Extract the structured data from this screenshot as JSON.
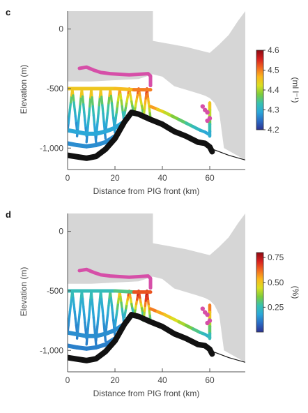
{
  "chart_data": [
    {
      "type": "scatter",
      "panel_label": "c",
      "xlabel": "Distance from PIG front (km)",
      "ylabel": "Elevation (m)",
      "xlim": [
        0,
        75
      ],
      "ylim": [
        -1180,
        150
      ],
      "x_ticks": [
        0,
        20,
        40,
        60
      ],
      "x_tick_labels": [
        "0",
        "20",
        "40",
        "60"
      ],
      "y_ticks": [
        0,
        -500,
        -1000
      ],
      "y_tick_labels": [
        "0",
        "-500",
        "-1,000"
      ],
      "colorbar": {
        "label": "(ml l⁻¹)",
        "min": 4.2,
        "max": 4.6,
        "ticks": [
          4.2,
          4.3,
          4.4,
          4.5,
          4.6
        ],
        "tick_labels": [
          "4.2",
          "4.3",
          "4.4",
          "4.5",
          "4.6"
        ]
      },
      "ice_shelf_upper": [
        [
          0,
          150
        ],
        [
          36,
          150
        ],
        [
          36,
          -100
        ],
        [
          50,
          -150
        ],
        [
          60,
          -200
        ],
        [
          64,
          -130
        ],
        [
          68,
          -50
        ],
        [
          72,
          70
        ],
        [
          75,
          150
        ]
      ],
      "ice_shelf_lower": [
        [
          0,
          -440
        ],
        [
          10,
          -440
        ],
        [
          20,
          -430
        ],
        [
          30,
          -420
        ],
        [
          36,
          -380
        ],
        [
          40,
          -400
        ],
        [
          45,
          -480
        ],
        [
          50,
          -510
        ],
        [
          55,
          -540
        ],
        [
          58,
          -560
        ],
        [
          60,
          -580
        ],
        [
          62,
          -620
        ],
        [
          64,
          -700
        ],
        [
          66,
          -1000
        ],
        [
          75,
          -1100
        ]
      ],
      "bathymetry": [
        [
          0,
          -1060
        ],
        [
          3,
          -1070
        ],
        [
          8,
          -1085
        ],
        [
          12,
          -1070
        ],
        [
          16,
          -1010
        ],
        [
          20,
          -920
        ],
        [
          24,
          -780
        ],
        [
          27,
          -700
        ],
        [
          30,
          -715
        ],
        [
          35,
          -760
        ],
        [
          40,
          -800
        ],
        [
          45,
          -860
        ],
        [
          50,
          -900
        ],
        [
          55,
          -950
        ],
        [
          58,
          -960
        ],
        [
          60,
          -990
        ],
        [
          61,
          -1030
        ]
      ],
      "bathymetry_extension": [
        [
          60,
          -1000
        ],
        [
          68,
          -1060
        ],
        [
          75,
          -1100
        ]
      ],
      "profiles": [
        {
          "x_start": 0,
          "x_end": 4,
          "top": -500,
          "bottom": -850,
          "values": [
            4.27,
            4.29,
            4.31,
            4.33,
            4.36,
            4.45
          ]
        },
        {
          "x_start": 4,
          "x_end": 8,
          "top": -500,
          "bottom": -900,
          "values": [
            4.27,
            4.29,
            4.31,
            4.33,
            4.36,
            4.45
          ]
        },
        {
          "x_start": 8,
          "x_end": 12,
          "top": -500,
          "bottom": -950,
          "values": [
            4.27,
            4.29,
            4.31,
            4.33,
            4.36,
            4.45
          ]
        },
        {
          "x_start": 12,
          "x_end": 16,
          "top": -500,
          "bottom": -920,
          "values": [
            4.27,
            4.29,
            4.31,
            4.33,
            4.36,
            4.45
          ]
        },
        {
          "x_start": 16,
          "x_end": 20,
          "top": -500,
          "bottom": -870,
          "values": [
            4.28,
            4.3,
            4.32,
            4.34,
            4.37,
            4.46
          ]
        },
        {
          "x_start": 20,
          "x_end": 24,
          "top": -500,
          "bottom": -800,
          "values": [
            4.3,
            4.33,
            4.36,
            4.39,
            4.42,
            4.48
          ]
        },
        {
          "x_start": 24,
          "x_end": 28,
          "top": -500,
          "bottom": -720,
          "values": [
            4.33,
            4.36,
            4.39,
            4.42,
            4.45,
            4.5
          ]
        },
        {
          "x_start": 28,
          "x_end": 32,
          "top": -500,
          "bottom": -720,
          "values": [
            4.36,
            4.39,
            4.42,
            4.45,
            4.48,
            4.52
          ]
        },
        {
          "x_start": 32,
          "x_end": 35,
          "top": -500,
          "bottom": -750,
          "values": [
            4.38,
            4.41,
            4.44,
            4.47,
            4.5,
            4.54
          ]
        }
      ],
      "deep_track": [
        [
          0,
          -850
        ],
        [
          4,
          -865
        ],
        [
          8,
          -880
        ],
        [
          12,
          -880
        ],
        [
          16,
          -860
        ],
        [
          20,
          -830
        ],
        [
          23,
          -790
        ]
      ],
      "bottom_track": [
        [
          0,
          -960
        ],
        [
          4,
          -975
        ],
        [
          8,
          -985
        ],
        [
          12,
          -975
        ],
        [
          16,
          -950
        ],
        [
          20,
          -900
        ]
      ],
      "upper_track": [
        [
          0,
          -500
        ],
        [
          10,
          -500
        ],
        [
          20,
          -500
        ],
        [
          28,
          -510
        ],
        [
          35,
          -510
        ]
      ],
      "transect_track": [
        [
          35,
          -650
        ],
        [
          38,
          -675
        ],
        [
          41,
          -700
        ],
        [
          44,
          -730
        ],
        [
          47,
          -760
        ],
        [
          50,
          -790
        ],
        [
          53,
          -820
        ],
        [
          56,
          -850
        ],
        [
          58,
          -865
        ],
        [
          60,
          -890
        ]
      ],
      "transect_values": [
        4.48,
        4.44,
        4.41,
        4.38,
        4.36,
        4.34,
        4.32,
        4.3,
        4.29,
        4.28
      ],
      "front_track": [
        [
          60,
          -620
        ],
        [
          60,
          -680
        ],
        [
          60,
          -740
        ],
        [
          60,
          -800
        ],
        [
          60,
          -860
        ],
        [
          60,
          -900
        ]
      ],
      "front_values": [
        4.45,
        4.41,
        4.37,
        4.33,
        4.3,
        4.28
      ],
      "ice_base_obs": [
        [
          5,
          -330
        ],
        [
          8,
          -320
        ],
        [
          11,
          -345
        ],
        [
          14,
          -365
        ],
        [
          18,
          -375
        ],
        [
          22,
          -380
        ],
        [
          26,
          -385
        ],
        [
          30,
          -380
        ],
        [
          34,
          -375
        ],
        [
          35,
          -395
        ],
        [
          35,
          -475
        ]
      ],
      "ice_base_obs_right": [
        [
          57,
          -650
        ],
        [
          58,
          -680
        ],
        [
          59,
          -700
        ],
        [
          60,
          -750
        ],
        [
          59,
          -770
        ]
      ]
    },
    {
      "type": "scatter",
      "panel_label": "d",
      "xlabel": "Distance from PIG front (km)",
      "ylabel": "Elevation (m)",
      "xlim": [
        0,
        75
      ],
      "ylim": [
        -1180,
        150
      ],
      "x_ticks": [
        0,
        20,
        40,
        60
      ],
      "x_tick_labels": [
        "0",
        "20",
        "40",
        "60"
      ],
      "y_ticks": [
        0,
        -500,
        -1000
      ],
      "y_tick_labels": [
        "0",
        "-500",
        "-1,000"
      ],
      "colorbar": {
        "label": "(%)",
        "min": 0,
        "max": 0.8,
        "ticks": [
          0.25,
          0.5,
          0.75
        ],
        "tick_labels": [
          "0.25",
          "0.50",
          "0.75"
        ]
      },
      "ice_shelf_upper": [
        [
          0,
          150
        ],
        [
          36,
          150
        ],
        [
          36,
          -100
        ],
        [
          50,
          -150
        ],
        [
          60,
          -200
        ],
        [
          64,
          -130
        ],
        [
          68,
          -50
        ],
        [
          72,
          70
        ],
        [
          75,
          150
        ]
      ],
      "ice_shelf_lower": [
        [
          0,
          -440
        ],
        [
          10,
          -440
        ],
        [
          20,
          -430
        ],
        [
          30,
          -420
        ],
        [
          36,
          -380
        ],
        [
          40,
          -400
        ],
        [
          45,
          -480
        ],
        [
          50,
          -510
        ],
        [
          55,
          -540
        ],
        [
          58,
          -560
        ],
        [
          60,
          -580
        ],
        [
          62,
          -620
        ],
        [
          64,
          -700
        ],
        [
          66,
          -1000
        ],
        [
          75,
          -1100
        ]
      ],
      "bathymetry": [
        [
          0,
          -1060
        ],
        [
          3,
          -1070
        ],
        [
          8,
          -1085
        ],
        [
          12,
          -1070
        ],
        [
          16,
          -1010
        ],
        [
          20,
          -920
        ],
        [
          24,
          -780
        ],
        [
          27,
          -700
        ],
        [
          30,
          -715
        ],
        [
          35,
          -760
        ],
        [
          40,
          -800
        ],
        [
          45,
          -860
        ],
        [
          50,
          -900
        ],
        [
          55,
          -950
        ],
        [
          58,
          -960
        ],
        [
          60,
          -990
        ],
        [
          61,
          -1030
        ]
      ],
      "bathymetry_extension": [
        [
          60,
          -1000
        ],
        [
          68,
          -1060
        ],
        [
          75,
          -1100
        ]
      ],
      "profiles": [
        {
          "x_start": 0,
          "x_end": 4,
          "top": -500,
          "bottom": -850,
          "values": [
            0.12,
            0.14,
            0.16,
            0.18,
            0.2,
            0.25
          ]
        },
        {
          "x_start": 4,
          "x_end": 8,
          "top": -500,
          "bottom": -900,
          "values": [
            0.12,
            0.14,
            0.16,
            0.18,
            0.2,
            0.25
          ]
        },
        {
          "x_start": 8,
          "x_end": 12,
          "top": -500,
          "bottom": -950,
          "values": [
            0.12,
            0.14,
            0.16,
            0.18,
            0.2,
            0.25
          ]
        },
        {
          "x_start": 12,
          "x_end": 16,
          "top": -500,
          "bottom": -920,
          "values": [
            0.12,
            0.14,
            0.16,
            0.18,
            0.2,
            0.25
          ]
        },
        {
          "x_start": 16,
          "x_end": 20,
          "top": -500,
          "bottom": -870,
          "values": [
            0.13,
            0.15,
            0.17,
            0.2,
            0.24,
            0.3
          ]
        },
        {
          "x_start": 20,
          "x_end": 24,
          "top": -500,
          "bottom": -800,
          "values": [
            0.17,
            0.2,
            0.25,
            0.32,
            0.4,
            0.5
          ]
        },
        {
          "x_start": 24,
          "x_end": 28,
          "top": -500,
          "bottom": -720,
          "values": [
            0.22,
            0.27,
            0.35,
            0.45,
            0.55,
            0.65
          ]
        },
        {
          "x_start": 28,
          "x_end": 32,
          "top": -500,
          "bottom": -720,
          "values": [
            0.28,
            0.35,
            0.45,
            0.55,
            0.65,
            0.72
          ]
        },
        {
          "x_start": 32,
          "x_end": 35,
          "top": -500,
          "bottom": -750,
          "values": [
            0.32,
            0.4,
            0.5,
            0.6,
            0.68,
            0.74
          ]
        }
      ],
      "deep_track": [
        [
          0,
          -850
        ],
        [
          4,
          -865
        ],
        [
          8,
          -880
        ],
        [
          12,
          -880
        ],
        [
          16,
          -860
        ],
        [
          20,
          -830
        ],
        [
          23,
          -790
        ]
      ],
      "bottom_track": [
        [
          0,
          -960
        ],
        [
          4,
          -975
        ],
        [
          8,
          -985
        ],
        [
          12,
          -975
        ],
        [
          16,
          -950
        ],
        [
          20,
          -900
        ]
      ],
      "upper_track": [
        [
          0,
          -500
        ],
        [
          10,
          -500
        ],
        [
          20,
          -500
        ],
        [
          28,
          -510
        ],
        [
          35,
          -510
        ]
      ],
      "transect_track": [
        [
          35,
          -650
        ],
        [
          38,
          -675
        ],
        [
          41,
          -700
        ],
        [
          44,
          -730
        ],
        [
          47,
          -760
        ],
        [
          50,
          -790
        ],
        [
          53,
          -820
        ],
        [
          56,
          -850
        ],
        [
          58,
          -865
        ],
        [
          60,
          -890
        ]
      ],
      "transect_values": [
        0.6,
        0.55,
        0.5,
        0.45,
        0.4,
        0.35,
        0.3,
        0.26,
        0.22,
        0.2
      ],
      "front_track": [
        [
          60,
          -620
        ],
        [
          60,
          -680
        ],
        [
          60,
          -740
        ],
        [
          60,
          -800
        ],
        [
          60,
          -860
        ],
        [
          60,
          -900
        ]
      ],
      "front_values": [
        0.6,
        0.5,
        0.4,
        0.32,
        0.25,
        0.2
      ],
      "ice_base_obs": [
        [
          5,
          -330
        ],
        [
          8,
          -320
        ],
        [
          11,
          -345
        ],
        [
          14,
          -365
        ],
        [
          18,
          -375
        ],
        [
          22,
          -380
        ],
        [
          26,
          -385
        ],
        [
          30,
          -380
        ],
        [
          34,
          -375
        ],
        [
          35,
          -395
        ],
        [
          35,
          -475
        ]
      ],
      "ice_base_obs_right": [
        [
          57,
          -650
        ],
        [
          58,
          -680
        ],
        [
          59,
          -700
        ],
        [
          60,
          -750
        ],
        [
          59,
          -770
        ]
      ]
    }
  ],
  "colors": {
    "ice_shelf": "#d6d6d6",
    "bathymetry": "#111111",
    "ice_base_obs": "#d64fa8",
    "axis": "#555555",
    "colormap": [
      "#2c3391",
      "#2a6bc4",
      "#2ba7d9",
      "#37c1b0",
      "#7ccc3c",
      "#d9df22",
      "#fbb71d",
      "#f26a21",
      "#d7201f",
      "#8b0a12"
    ]
  }
}
